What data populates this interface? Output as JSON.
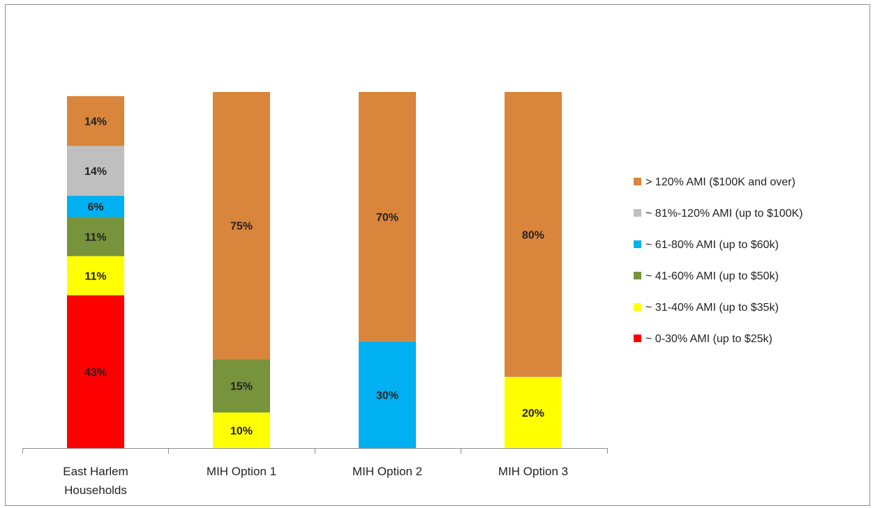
{
  "chart_data": {
    "type": "bar",
    "stacked": true,
    "normalized": true,
    "categories": [
      "East Harlem|Households",
      "MIH Option 1",
      "MIH Option 2",
      "MIH Option 3"
    ],
    "series": [
      {
        "name": "~ 0-30% AMI (up to $25k)",
        "color": "#ff0000",
        "values": [
          43,
          0,
          0,
          0
        ]
      },
      {
        "name": "~ 31-40% AMI (up to $35k)",
        "color": "#ffff00",
        "values": [
          11,
          10,
          0,
          20
        ]
      },
      {
        "name": "~ 41-60% AMI (up to $50k)",
        "color": "#77933c",
        "values": [
          11,
          15,
          0,
          0
        ]
      },
      {
        "name": "~ 61-80% AMI (up to $60k)",
        "color": "#00b0f0",
        "values": [
          6,
          0,
          30,
          0
        ]
      },
      {
        "name": "~ 81%-120% AMI (up to $100K)",
        "color": "#bfbfbf",
        "values": [
          14,
          0,
          0,
          0
        ]
      },
      {
        "name": "> 120% AMI ($100K and over)",
        "color": "#d9853b",
        "values": [
          14,
          75,
          70,
          80
        ]
      }
    ],
    "data_labels": true,
    "label_format": "{v}%",
    "legend_position": "right",
    "legend_order": [
      "> 120% AMI ($100K and over)",
      "~ 81%-120% AMI (up to $100K)",
      "~ 61-80% AMI (up to $60k)",
      "~ 41-60% AMI (up to $50k)",
      "~ 31-40% AMI (up to $35k)",
      "~ 0-30% AMI (up to $25k)"
    ],
    "title": "",
    "xlabel": "",
    "ylabel": "",
    "grid": false
  }
}
